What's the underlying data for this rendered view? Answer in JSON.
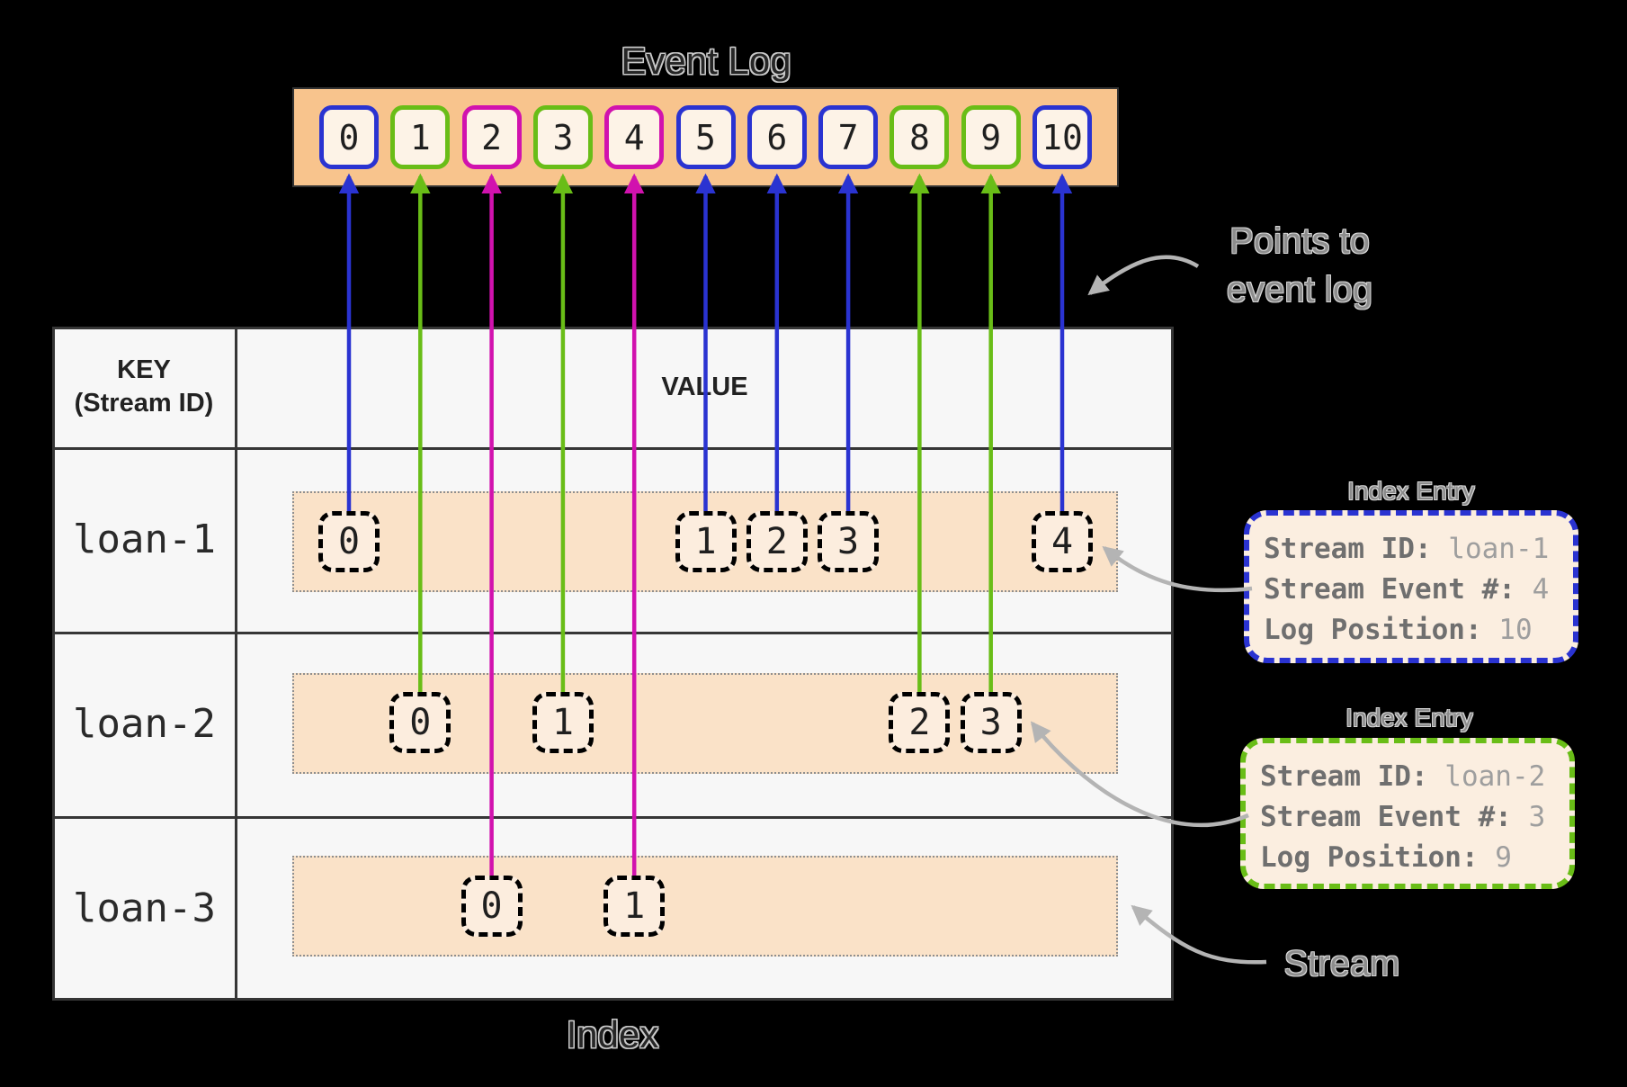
{
  "colors": {
    "stream1_blue": "#2a33d1",
    "stream2_green": "#69bd17",
    "stream3_magenta": "#d112ae",
    "bar_fill": "#f8c48d",
    "slot_fill": "#fdf3e7",
    "strip_fill": "#fae2c8",
    "entry_fill": "#fcedde",
    "callout_fill": "#fbeee0",
    "table_fill": "#f7f7f7",
    "table_border": "#363636",
    "annotation_gray": "#b4b4b4"
  },
  "event_log": {
    "title": "Event Log",
    "slots": [
      {
        "label": "0",
        "stream": 1
      },
      {
        "label": "1",
        "stream": 2
      },
      {
        "label": "2",
        "stream": 3
      },
      {
        "label": "3",
        "stream": 2
      },
      {
        "label": "4",
        "stream": 3
      },
      {
        "label": "5",
        "stream": 1
      },
      {
        "label": "6",
        "stream": 1
      },
      {
        "label": "7",
        "stream": 1
      },
      {
        "label": "8",
        "stream": 2
      },
      {
        "label": "9",
        "stream": 2
      },
      {
        "label": "10",
        "stream": 1
      }
    ]
  },
  "index_table": {
    "caption": "Index",
    "key_header_line1": "KEY",
    "key_header_line2": "(Stream ID)",
    "value_header": "VALUE",
    "rows": [
      {
        "key": "loan-1",
        "stream": 1,
        "entries": [
          {
            "label": "0",
            "slot": 0
          },
          {
            "label": "1",
            "slot": 5
          },
          {
            "label": "2",
            "slot": 6
          },
          {
            "label": "3",
            "slot": 7
          },
          {
            "label": "4",
            "slot": 10
          }
        ]
      },
      {
        "key": "loan-2",
        "stream": 2,
        "entries": [
          {
            "label": "0",
            "slot": 1
          },
          {
            "label": "1",
            "slot": 3
          },
          {
            "label": "2",
            "slot": 8
          },
          {
            "label": "3",
            "slot": 9
          }
        ]
      },
      {
        "key": "loan-3",
        "stream": 3,
        "entries": [
          {
            "label": "0",
            "slot": 2
          },
          {
            "label": "1",
            "slot": 4
          }
        ]
      }
    ]
  },
  "annotations": {
    "points_to_line1": "Points to",
    "points_to_line2": "event log",
    "stream_label": "Stream"
  },
  "callouts": [
    {
      "title": "Index Entry",
      "stream": 1,
      "fields": [
        {
          "label": "Stream ID:",
          "value": "loan-1"
        },
        {
          "label": "Stream Event #:",
          "value": "4"
        },
        {
          "label": "Log Position:",
          "value": "10"
        }
      ]
    },
    {
      "title": "Index Entry",
      "stream": 2,
      "fields": [
        {
          "label": "Stream ID:",
          "value": "loan-2"
        },
        {
          "label": "Stream Event #:",
          "value": "3"
        },
        {
          "label": "Log Position:",
          "value": "9"
        }
      ]
    }
  ]
}
